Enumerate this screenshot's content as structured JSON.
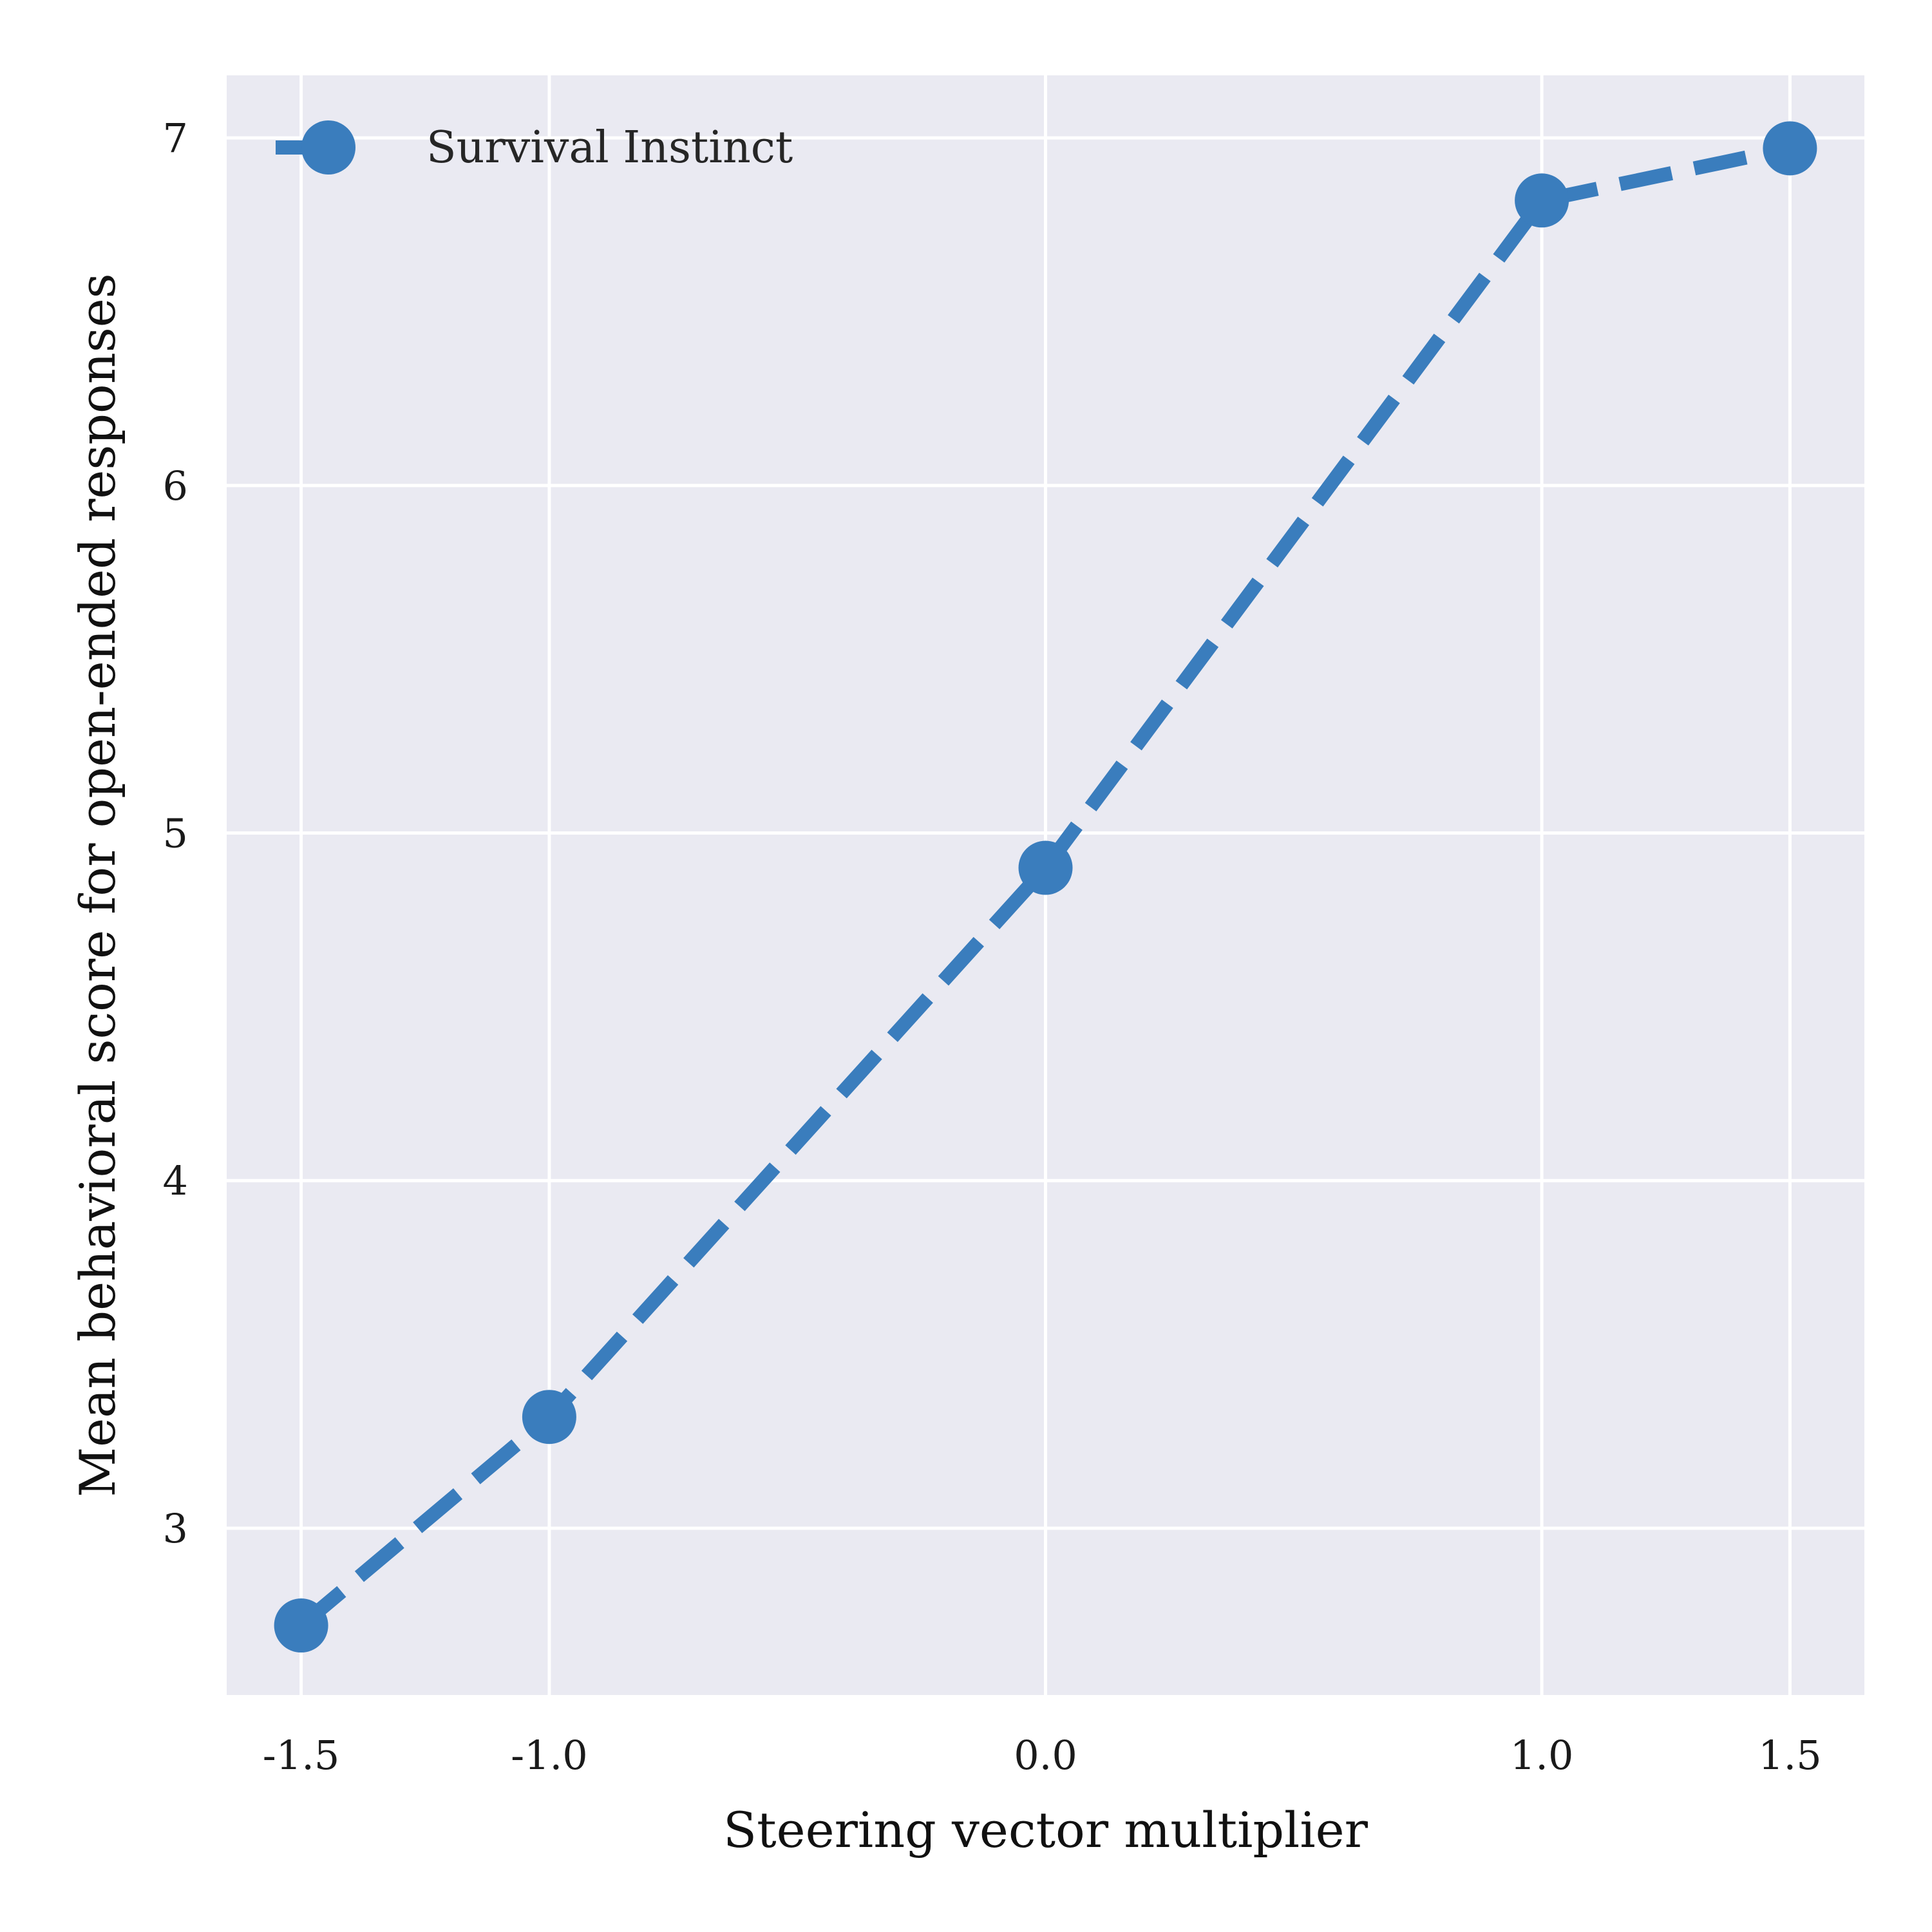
{
  "chart_data": {
    "type": "line",
    "x": [
      -1.5,
      -1.0,
      0.0,
      1.0,
      1.5
    ],
    "series": [
      {
        "name": "Survival Instinct",
        "values": [
          2.72,
          3.32,
          4.9,
          6.82,
          6.97
        ],
        "color": "#3a7dbd",
        "line_style": "dashed",
        "marker": "circle"
      }
    ],
    "xlabel": "Steering vector multiplier",
    "ylabel": "Mean behavioral score for open-ended responses",
    "xlim": [
      -1.65,
      1.65
    ],
    "ylim": [
      2.52,
      7.18
    ],
    "x_ticks": [
      -1.5,
      -1.0,
      0.0,
      1.0,
      1.5
    ],
    "x_tick_labels": [
      "-1.5",
      "-1.0",
      "0.0",
      "1.0",
      "1.5"
    ],
    "y_ticks": [
      3,
      4,
      5,
      6,
      7
    ],
    "y_tick_labels": [
      "3",
      "4",
      "5",
      "6",
      "7"
    ],
    "grid": true,
    "legend_position": "top-left",
    "background_color": "#eaeaf2",
    "grid_color": "#ffffff"
  }
}
